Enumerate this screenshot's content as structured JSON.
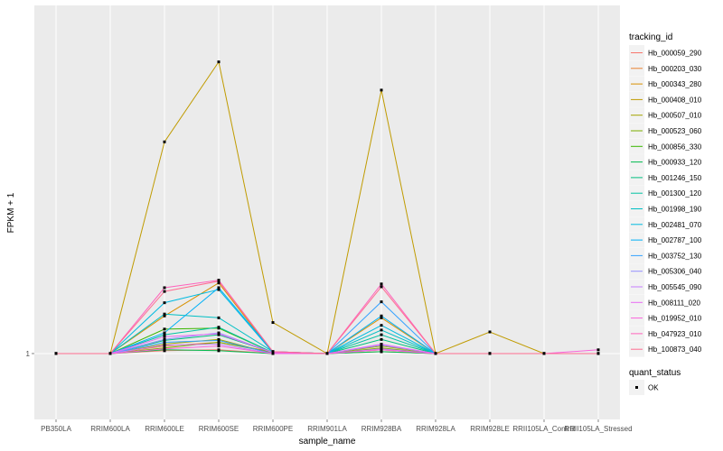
{
  "chart_data": {
    "type": "line",
    "xlabel": "sample_name",
    "ylabel": "FPKM + 1",
    "categories": [
      "PB350LA",
      "RRIM600LA",
      "RRIM600LE",
      "RRIM600SE",
      "RRIM600PE",
      "RRIM901LA",
      "RRIM928BA",
      "RRIM928LA",
      "RRIM928LE",
      "RRII105LA_Control",
      "RRII105LA_Stressed"
    ],
    "y_ticks": [
      {
        "value": 1,
        "label": "1"
      }
    ],
    "ylim": [
      0.93,
      1.37
    ],
    "grid": true,
    "legend_placement": "right",
    "colors": {
      "panel_background": "#ebebeb",
      "grid": "#ffffff",
      "point": "#000000"
    },
    "legend": {
      "color_title": "tracking_id",
      "shape_title": "quant_status",
      "shape_entries": [
        "OK"
      ]
    },
    "series": [
      {
        "name": "Hb_000059_290",
        "color": "#F8766D",
        "values": [
          1,
          1,
          1.003,
          1.004,
          1,
          1,
          1.002,
          1,
          1,
          1,
          1
        ]
      },
      {
        "name": "Hb_000203_030",
        "color": "#EA8331",
        "values": [
          1,
          1,
          1.008,
          1.012,
          1.002,
          1,
          1.004,
          1,
          1,
          1,
          1
        ]
      },
      {
        "name": "Hb_000343_280",
        "color": "#D89000",
        "values": [
          1,
          1,
          1.04,
          1.075,
          1.001,
          1,
          1.038,
          1,
          1,
          1,
          1
        ]
      },
      {
        "name": "Hb_000408_010",
        "color": "#C09B00",
        "values": [
          1,
          1,
          1.225,
          1.31,
          1.033,
          1,
          1.28,
          1,
          1.023,
          1,
          1
        ]
      },
      {
        "name": "Hb_000507_010",
        "color": "#A3A500",
        "values": [
          1,
          1,
          1.01,
          1.015,
          1,
          1,
          1.008,
          1,
          1,
          1,
          1
        ]
      },
      {
        "name": "Hb_000523_060",
        "color": "#7CAE00",
        "values": [
          1,
          1,
          1.006,
          1.012,
          1.001,
          1,
          1.006,
          1,
          1,
          1,
          1
        ]
      },
      {
        "name": "Hb_000856_330",
        "color": "#39B600",
        "values": [
          1,
          1,
          1.026,
          1.027,
          1.001,
          1,
          1.005,
          1,
          1,
          1,
          1
        ]
      },
      {
        "name": "Hb_000933_120",
        "color": "#00BB4E",
        "values": [
          1,
          1,
          1.004,
          1.003,
          1,
          1,
          1.002,
          1,
          1,
          1,
          1
        ]
      },
      {
        "name": "Hb_001246_150",
        "color": "#00BF7D",
        "values": [
          1,
          1,
          1.014,
          1.02,
          1.001,
          1,
          1.015,
          1,
          1,
          1,
          1
        ]
      },
      {
        "name": "Hb_001300_120",
        "color": "#00C1A3",
        "values": [
          1,
          1,
          1.02,
          1.028,
          1.001,
          1,
          1.02,
          1,
          1,
          1,
          1
        ]
      },
      {
        "name": "Hb_001998_190",
        "color": "#00BFC4",
        "values": [
          1,
          1,
          1.042,
          1.038,
          1.002,
          1,
          1.025,
          1,
          1,
          1,
          1
        ]
      },
      {
        "name": "Hb_002481_070",
        "color": "#00BAE0",
        "values": [
          1,
          1,
          1.054,
          1.068,
          1.001,
          1,
          1.03,
          1,
          1,
          1,
          1
        ]
      },
      {
        "name": "Hb_002787_100",
        "color": "#00B0F6",
        "values": [
          1,
          1,
          1.022,
          1.07,
          1.002,
          1,
          1.04,
          1,
          1,
          1,
          1
        ]
      },
      {
        "name": "Hb_003752_130",
        "color": "#35A2FF",
        "values": [
          1,
          1,
          1.012,
          1.014,
          1,
          1,
          1.055,
          1,
          1,
          1,
          1
        ]
      },
      {
        "name": "Hb_005306_040",
        "color": "#9590FF",
        "values": [
          1,
          1,
          1.015,
          1.022,
          1.001,
          1,
          1.009,
          1,
          1,
          1,
          1
        ]
      },
      {
        "name": "Hb_005545_090",
        "color": "#C77CFF",
        "values": [
          1,
          1,
          1.009,
          1.01,
          1,
          1,
          1.005,
          1,
          1,
          1,
          1
        ]
      },
      {
        "name": "Hb_008111_020",
        "color": "#E76BF3",
        "values": [
          1,
          1,
          1.018,
          1.021,
          1.001,
          1,
          1.01,
          1,
          1,
          1,
          1
        ]
      },
      {
        "name": "Hb_019952_010",
        "color": "#FA62DB",
        "values": [
          1,
          1,
          1.005,
          1.008,
          1,
          1,
          1.004,
          1,
          1,
          1,
          1.004
        ]
      },
      {
        "name": "Hb_047923_010",
        "color": "#FF62BC",
        "values": [
          1,
          1,
          1.07,
          1.078,
          1.002,
          1,
          1.074,
          1,
          1,
          1,
          1
        ]
      },
      {
        "name": "Hb_100873_040",
        "color": "#FF6C91",
        "values": [
          1,
          1,
          1.066,
          1.077,
          1.002,
          1,
          1.071,
          1,
          1,
          1,
          1
        ]
      }
    ]
  }
}
